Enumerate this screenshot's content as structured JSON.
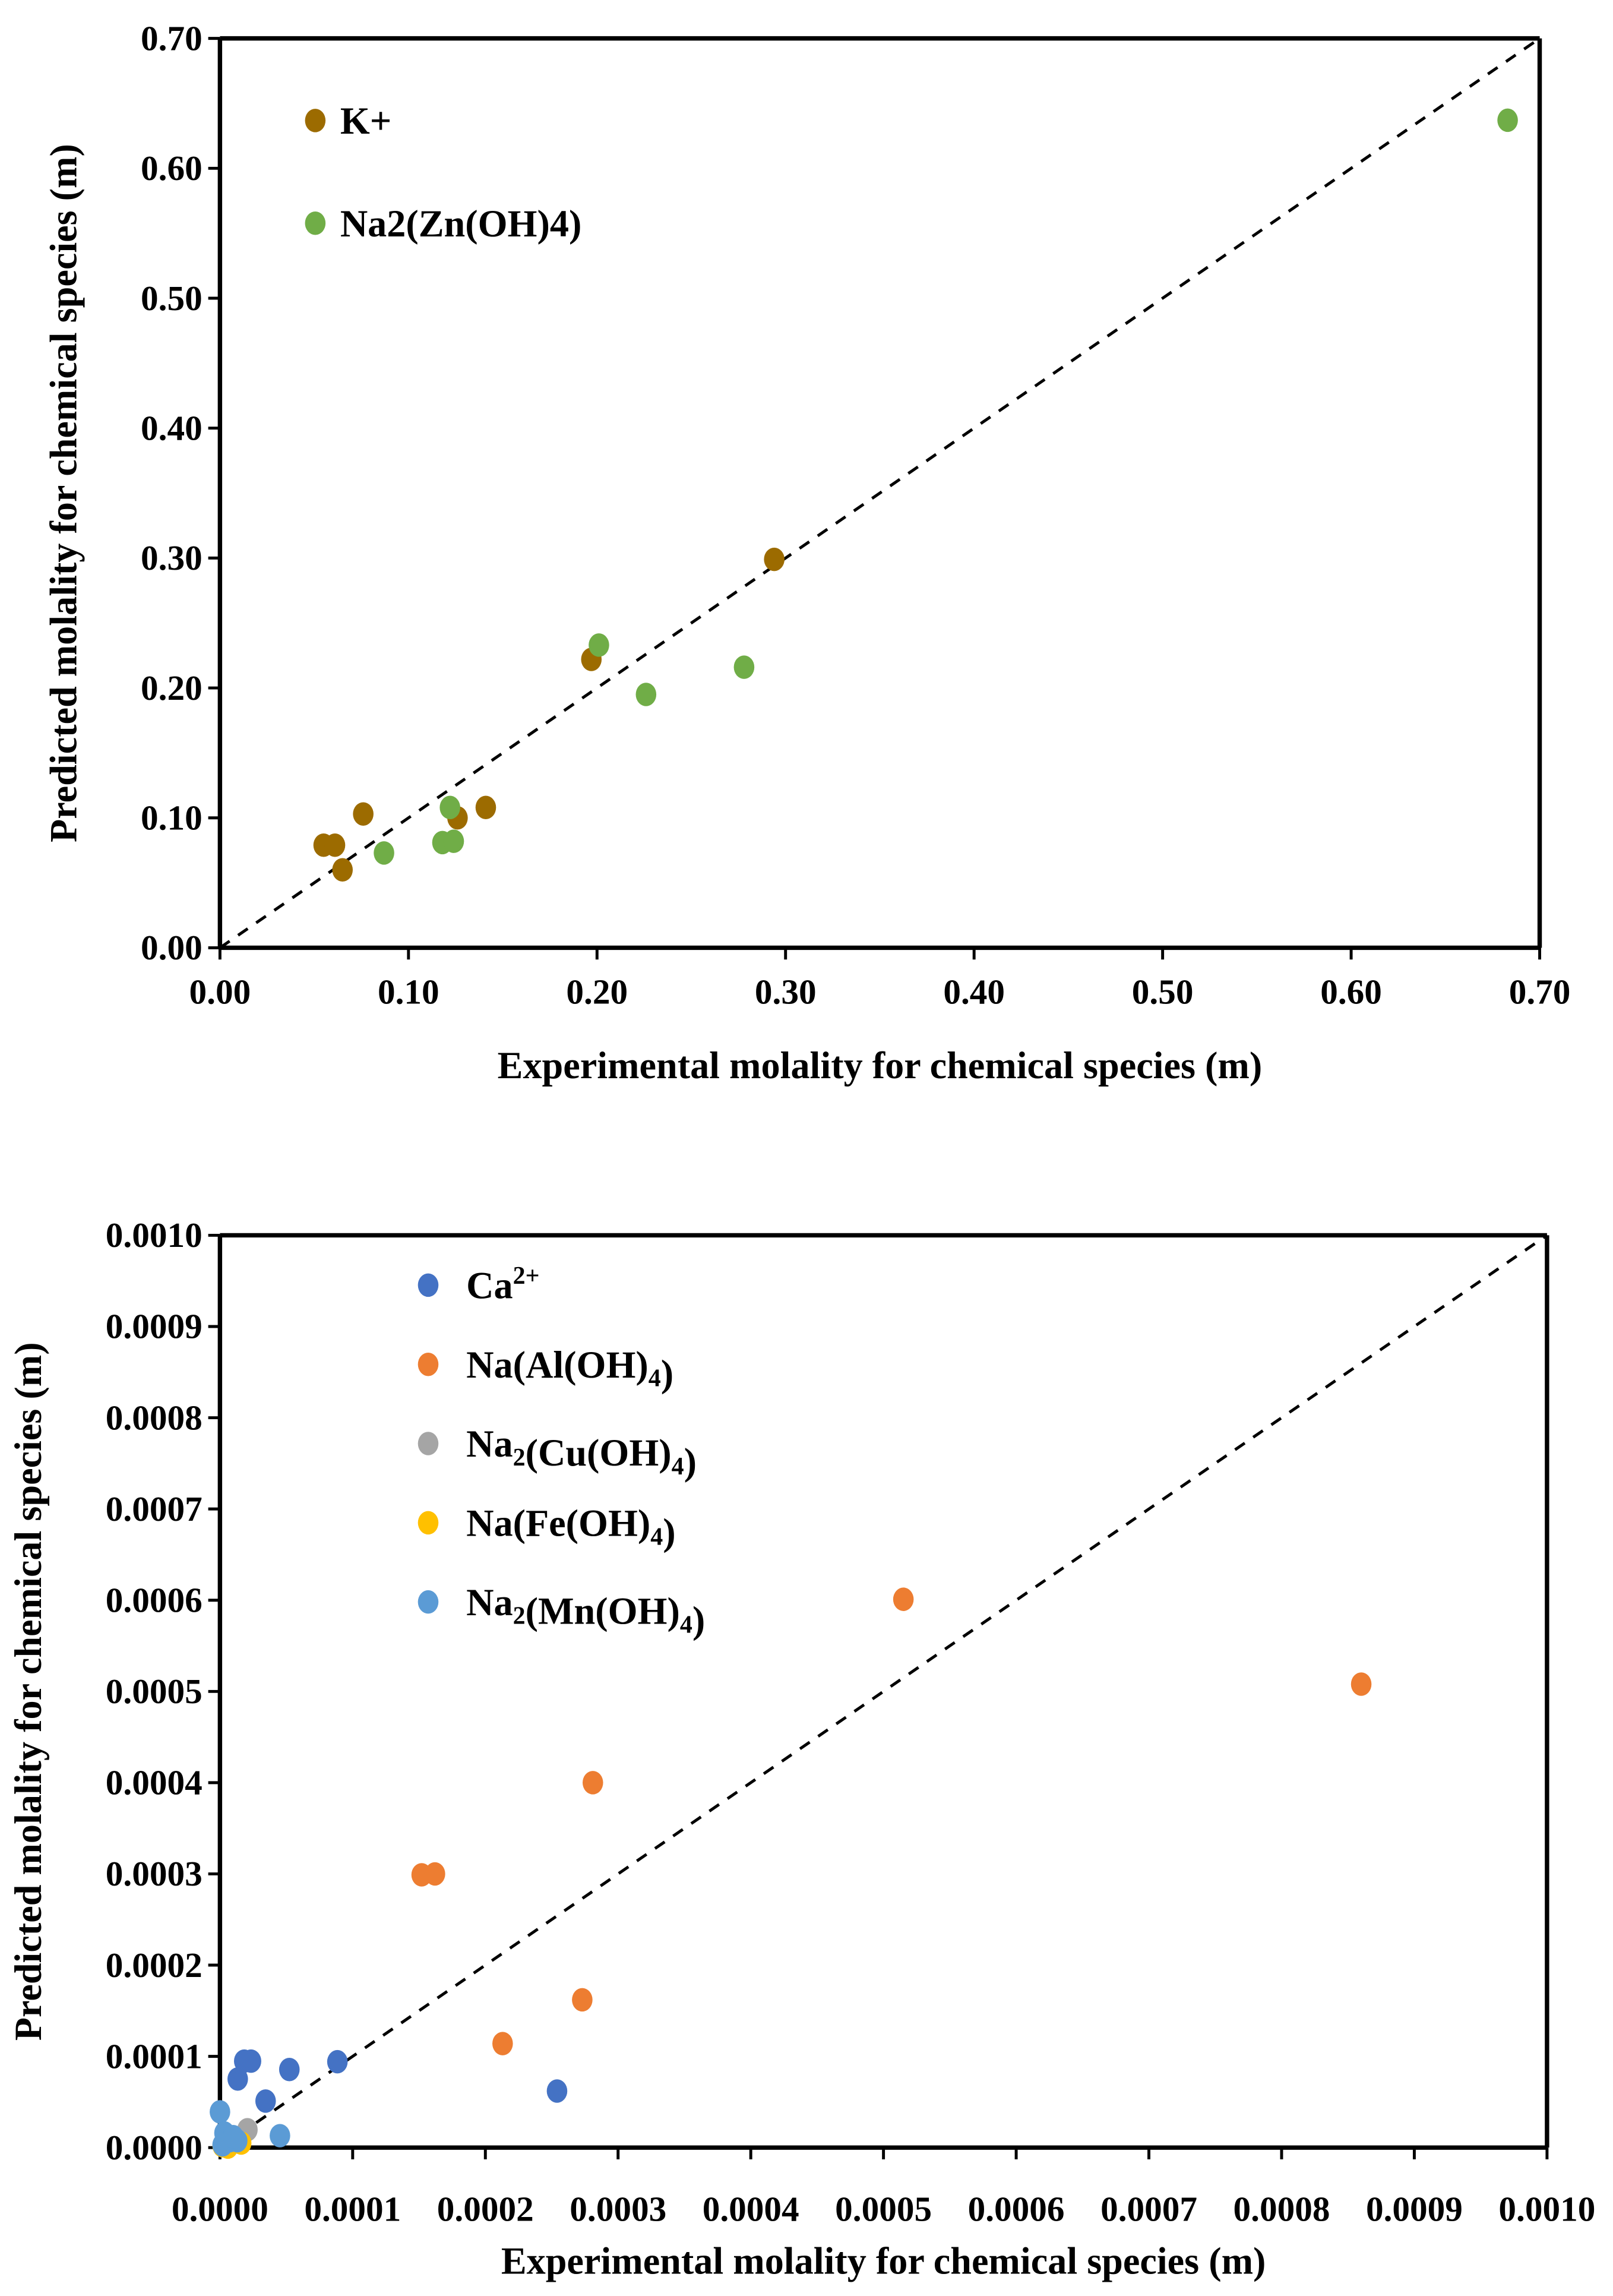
{
  "chart_data": [
    {
      "type": "scatter",
      "title": "",
      "xlabel": "Experimental molality for chemical species (m)",
      "ylabel": "Predicted molality for chemical species (m)",
      "xlim": [
        0,
        0.7
      ],
      "ylim": [
        0,
        0.7
      ],
      "xticks": [
        "0.00",
        "0.10",
        "0.20",
        "0.30",
        "0.40",
        "0.50",
        "0.60",
        "0.70"
      ],
      "yticks": [
        "0.00",
        "0.10",
        "0.20",
        "0.30",
        "0.40",
        "0.50",
        "0.60",
        "0.70"
      ],
      "tick_step": 0.1,
      "reference_line": "y = x (dashed)",
      "legend_position": "top-left",
      "series": [
        {
          "name": "K+",
          "label_parts": [
            {
              "t": "K+"
            }
          ],
          "color": "#9C6B00",
          "points": [
            [
              0.055,
              0.079
            ],
            [
              0.061,
              0.079
            ],
            [
              0.065,
              0.06
            ],
            [
              0.076,
              0.103
            ],
            [
              0.126,
              0.1
            ],
            [
              0.141,
              0.108
            ],
            [
              0.197,
              0.222
            ],
            [
              0.294,
              0.299
            ]
          ]
        },
        {
          "name": "Na2(Zn(OH)4)",
          "label_parts": [
            {
              "t": "Na2(Zn(OH)4)"
            }
          ],
          "color": "#70AD47",
          "points": [
            [
              0.087,
              0.073
            ],
            [
              0.118,
              0.081
            ],
            [
              0.124,
              0.082
            ],
            [
              0.122,
              0.108
            ],
            [
              0.201,
              0.233
            ],
            [
              0.226,
              0.195
            ],
            [
              0.278,
              0.216
            ],
            [
              0.683,
              0.637
            ]
          ]
        }
      ]
    },
    {
      "type": "scatter",
      "title": "",
      "xlabel": "Experimental molality for chemical species (m)",
      "ylabel": "Predicted molality for chemical species (m)",
      "xlim": [
        0,
        0.001
      ],
      "ylim": [
        0,
        0.001
      ],
      "xticks": [
        "0.0000",
        "0.0001",
        "0.0002",
        "0.0003",
        "0.0004",
        "0.0005",
        "0.0006",
        "0.0007",
        "0.0008",
        "0.0009",
        "0.0010"
      ],
      "yticks": [
        "0.0000",
        "0.0001",
        "0.0002",
        "0.0003",
        "0.0004",
        "0.0005",
        "0.0006",
        "0.0007",
        "0.0008",
        "0.0009",
        "0.0010"
      ],
      "tick_step": 0.0001,
      "reference_line": "y = x (dashed)",
      "legend_position": "top-left",
      "series": [
        {
          "name": "Ca2+",
          "label_parts": [
            {
              "t": "Ca"
            },
            {
              "t": "2+",
              "sup": true
            }
          ],
          "color": "#4472C4",
          "points": [
            [
              1.83e-05,
              9.48e-05
            ],
            [
              2.34e-05,
              9.48e-05
            ],
            [
              1.34e-05,
              7.52e-05
            ],
            [
              3.44e-05,
              5.1e-05
            ],
            [
              5.23e-05,
              8.56e-05
            ],
            [
              8.85e-05,
              9.41e-05
            ],
            [
              0.000254,
              6.2e-05
            ]
          ]
        },
        {
          "name": "Na(Al(OH)4)",
          "label_parts": [
            {
              "t": "Na(Al(OH)"
            },
            {
              "t": "4",
              "sub": true
            },
            {
              "t": ")"
            }
          ],
          "color": "#ED7D31",
          "points": [
            [
              0.000152,
              0.000299
            ],
            [
              0.000162,
              0.0003
            ],
            [
              0.000213,
              0.000114
            ],
            [
              0.000273,
              0.000162
            ],
            [
              0.000281,
              0.0004
            ],
            [
              0.000515,
              0.000601
            ],
            [
              0.00086,
              0.000508
            ]
          ]
        },
        {
          "name": "Na2(Cu(OH)4)",
          "label_parts": [
            {
              "t": "Na"
            },
            {
              "t": "2",
              "sub": true
            },
            {
              "t": "(Cu(OH)"
            },
            {
              "t": "4",
              "sub": true
            },
            {
              "t": ")"
            }
          ],
          "color": "#A5A5A5",
          "points": [
            [
              2.07e-05,
              1.96e-05
            ],
            [
              8e-06,
              5e-06
            ]
          ]
        },
        {
          "name": "Na(Fe(OH)4)",
          "label_parts": [
            {
              "t": "Na(Fe(OH)"
            },
            {
              "t": "4",
              "sub": true
            },
            {
              "t": ")"
            }
          ],
          "color": "#FFC000",
          "points": [
            [
              6e-06,
              5e-07
            ],
            [
              1.6e-05,
              5e-06
            ],
            [
              2e-06,
              2e-06
            ]
          ]
        },
        {
          "name": "Na2(Mn(OH)4)",
          "label_parts": [
            {
              "t": "Na"
            },
            {
              "t": "2",
              "sub": true
            },
            {
              "t": "(Mn(OH)"
            },
            {
              "t": "4",
              "sub": true
            },
            {
              "t": ")"
            }
          ],
          "color": "#5B9BD5",
          "points": [
            [
              0.0,
              3.92e-05
            ],
            [
              4.52e-05,
              1.31e-05
            ],
            [
              3.4e-06,
              1.6e-05
            ],
            [
              7.4e-06,
              7.5e-06
            ],
            [
              1.3e-05,
              7.5e-06
            ],
            [
              2e-06,
              3e-06
            ],
            [
              1e-05,
              1.2e-05
            ]
          ]
        }
      ]
    }
  ]
}
